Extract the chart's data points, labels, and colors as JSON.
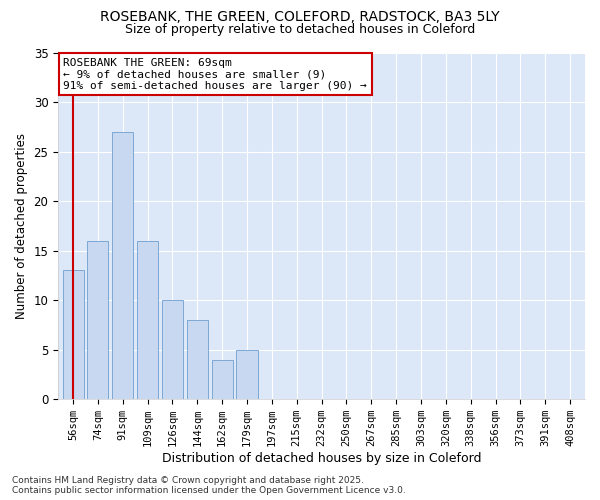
{
  "title1": "ROSEBANK, THE GREEN, COLEFORD, RADSTOCK, BA3 5LY",
  "title2": "Size of property relative to detached houses in Coleford",
  "xlabel": "Distribution of detached houses by size in Coleford",
  "ylabel": "Number of detached properties",
  "categories": [
    "56sqm",
    "74sqm",
    "91sqm",
    "109sqm",
    "126sqm",
    "144sqm",
    "162sqm",
    "179sqm",
    "197sqm",
    "215sqm",
    "232sqm",
    "250sqm",
    "267sqm",
    "285sqm",
    "303sqm",
    "320sqm",
    "338sqm",
    "356sqm",
    "373sqm",
    "391sqm",
    "408sqm"
  ],
  "values": [
    13,
    16,
    27,
    16,
    10,
    8,
    4,
    5,
    0,
    0,
    0,
    0,
    0,
    0,
    0,
    0,
    0,
    0,
    0,
    0,
    0
  ],
  "bar_color": "#c8d8f0",
  "bar_edge_color": "#7ba8d4",
  "plot_bg_color": "#dce8f8",
  "fig_bg_color": "#ffffff",
  "ylim": [
    0,
    35
  ],
  "yticks": [
    0,
    5,
    10,
    15,
    20,
    25,
    30,
    35
  ],
  "annotation_text": "ROSEBANK THE GREEN: 69sqm\n← 9% of detached houses are smaller (9)\n91% of semi-detached houses are larger (90) →",
  "annotation_box_color": "#ffffff",
  "annotation_box_edge": "#cc0000",
  "red_line_x": 0,
  "footer": "Contains HM Land Registry data © Crown copyright and database right 2025.\nContains public sector information licensed under the Open Government Licence v3.0.",
  "grid_color": "#ffffff",
  "title_fontsize": 10,
  "subtitle_fontsize": 9,
  "tick_fontsize": 7.5,
  "ylabel_fontsize": 8.5,
  "xlabel_fontsize": 9,
  "annotation_fontsize": 8
}
